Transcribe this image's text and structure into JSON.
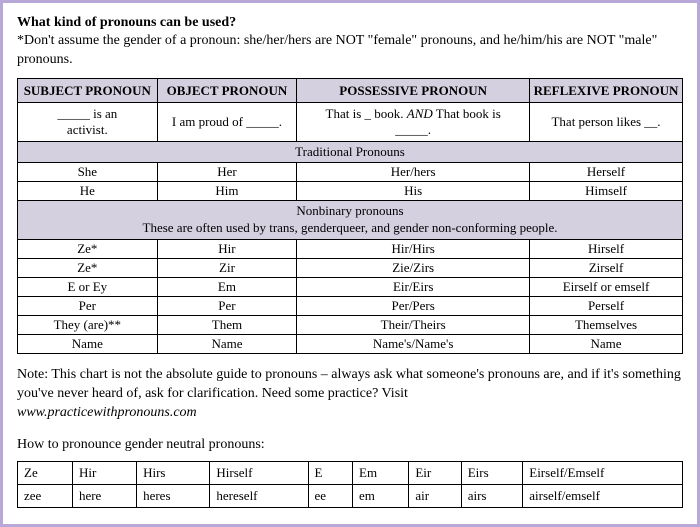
{
  "title": "What kind of pronouns can be used?",
  "subtitle_pre": "*Don't assume the gender of a pronoun: she/her/hers are NOT \"female\" pronouns, and he/him/his are NOT \"male\" pronouns.",
  "headers": {
    "subject": "SUBJECT PRONOUN",
    "object": "OBJECT PRONOUN",
    "possessive": "POSSESSIVE PRONOUN",
    "reflexive": "REFLEXIVE PRONOUN"
  },
  "examples": {
    "subject_a": "_____ is an",
    "subject_b": "activist.",
    "object": "I am proud of _____.",
    "possessive_a": "That is _ book. ",
    "possessive_and": "AND",
    "possessive_b": " That book is",
    "possessive_c": "_____.",
    "reflexive": "That person likes __."
  },
  "section_traditional": "Traditional Pronouns",
  "traditional": [
    {
      "s": "She",
      "o": "Her",
      "p": "Her/hers",
      "r": "Herself"
    },
    {
      "s": "He",
      "o": "Him",
      "p": "His",
      "r": "Himself"
    }
  ],
  "section_nonbinary_a": "Nonbinary pronouns",
  "section_nonbinary_b": "These are often used by trans, genderqueer, and gender non-conforming people.",
  "nonbinary": [
    {
      "s": "Ze*",
      "o": "Hir",
      "p": "Hir/Hirs",
      "r": "Hirself"
    },
    {
      "s": "Ze*",
      "o": "Zir",
      "p": "Zie/Zirs",
      "r": "Zirself"
    },
    {
      "s": "E or Ey",
      "o": "Em",
      "p": "Eir/Eirs",
      "r": "Eirself or emself"
    },
    {
      "s": "Per",
      "o": "Per",
      "p": "Per/Pers",
      "r": "Perself"
    },
    {
      "s": "They (are)**",
      "o": "Them",
      "p": "Their/Theirs",
      "r": "Themselves"
    },
    {
      "s": "Name",
      "o": "Name",
      "p": "Name's/Name's",
      "r": "Name"
    }
  ],
  "note_a": "Note: This chart is not the absolute guide to pronouns – always ask what someone's pronouns are, and if it's something you've never heard of, ask for clarification. Need some practice? Visit ",
  "note_url": "www.practicewithpronouns.com",
  "pron_heading": "How to pronounce gender neutral pronouns:",
  "pron_rows": [
    [
      "Ze",
      "Hir",
      "Hirs",
      "Hirself",
      "E",
      "Em",
      "Eir",
      "Eirs",
      "Eirself/Emself"
    ],
    [
      "zee",
      "here",
      "heres",
      "hereself",
      "ee",
      "em",
      "air",
      "airs",
      "airself/emself"
    ]
  ],
  "style": {
    "border_color": "#b8a8d8",
    "section_bg": "#d5d0e0",
    "cell_border": "#000000",
    "font_family": "Times New Roman",
    "title_fontsize": 14,
    "body_fontsize": 14,
    "table_fontsize": 13,
    "col_widths_pct": [
      21,
      21,
      35,
      23
    ],
    "pron_col_count": 9
  }
}
